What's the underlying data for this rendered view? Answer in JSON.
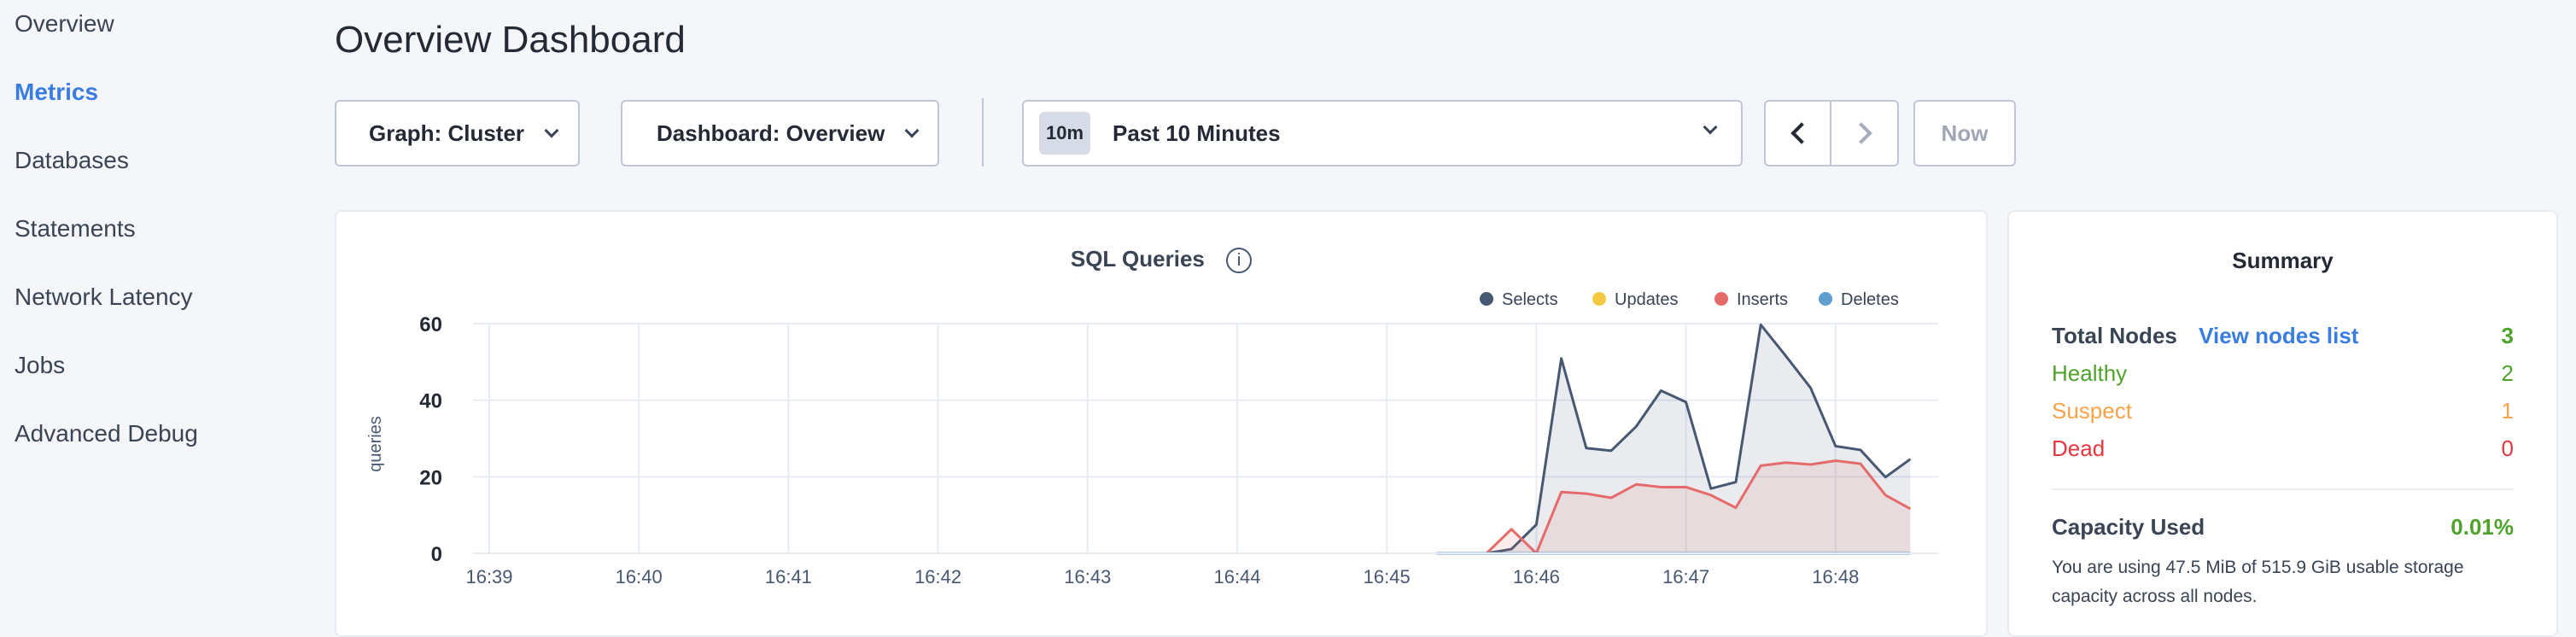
{
  "sidebar": {
    "items": [
      {
        "label": "Overview",
        "active": false
      },
      {
        "label": "Metrics",
        "active": true
      },
      {
        "label": "Databases",
        "active": false
      },
      {
        "label": "Statements",
        "active": false
      },
      {
        "label": "Network Latency",
        "active": false
      },
      {
        "label": "Jobs",
        "active": false
      },
      {
        "label": "Advanced Debug",
        "active": false
      }
    ]
  },
  "header": {
    "title": "Overview Dashboard"
  },
  "toolbar": {
    "graph_select": "Graph: Cluster",
    "dashboard_select": "Dashboard: Overview",
    "time_badge": "10m",
    "time_range": "Past 10 Minutes",
    "now_label": "Now"
  },
  "chart_data": {
    "type": "area",
    "title": "SQL Queries",
    "ylabel": "queries",
    "xlabel": "",
    "ylim": [
      0,
      60
    ],
    "yticks": [
      0,
      20,
      40,
      60
    ],
    "xticks": [
      "16:39",
      "16:40",
      "16:41",
      "16:42",
      "16:43",
      "16:44",
      "16:45",
      "16:46",
      "16:47",
      "16:48"
    ],
    "grid": true,
    "legend": "top-right",
    "x": [
      "16:45:20",
      "16:45:30",
      "16:45:40",
      "16:45:50",
      "16:46:00",
      "16:46:10",
      "16:46:20",
      "16:46:30",
      "16:46:40",
      "16:46:50",
      "16:47:00",
      "16:47:10",
      "16:47:20",
      "16:47:30",
      "16:47:40",
      "16:47:50",
      "16:48:00",
      "16:48:10",
      "16:48:20",
      "16:48:30"
    ],
    "series": [
      {
        "name": "Selects",
        "color": "#475872",
        "values": [
          0,
          0,
          0,
          1.1,
          7.5,
          50.9,
          27.5,
          26.8,
          33.1,
          42.5,
          39.5,
          16.9,
          18.6,
          59.7,
          51.6,
          43.2,
          28.0,
          27.0,
          19.9,
          24.6
        ]
      },
      {
        "name": "Updates",
        "color": "#f5c842",
        "values": [
          0,
          0,
          0,
          0,
          0,
          0,
          0,
          0,
          0,
          0,
          0,
          0,
          0,
          0,
          0,
          0,
          0,
          0,
          0,
          0
        ]
      },
      {
        "name": "Inserts",
        "color": "#e56b6b",
        "values": [
          0,
          0,
          0,
          6.3,
          0,
          16.0,
          15.6,
          14.5,
          18.0,
          17.3,
          17.3,
          15.2,
          11.9,
          22.9,
          23.7,
          23.2,
          24.2,
          23.4,
          15.2,
          11.6
        ]
      },
      {
        "name": "Deletes",
        "color": "#5f9fcf",
        "values": [
          0,
          0,
          0,
          0,
          0,
          0,
          0,
          0,
          0,
          0,
          0,
          0,
          0,
          0,
          0,
          0,
          0,
          0,
          0,
          0
        ]
      }
    ]
  },
  "summary": {
    "title": "Summary",
    "total_nodes_label": "Total Nodes",
    "view_nodes_link": "View nodes list",
    "total_nodes": "3",
    "healthy_label": "Healthy",
    "healthy": "2",
    "suspect_label": "Suspect",
    "suspect": "1",
    "dead_label": "Dead",
    "dead": "0",
    "capacity_label": "Capacity Used",
    "capacity_value": "0.01%",
    "capacity_text": "You are using 47.5 MiB of 515.9 GiB usable storage capacity across all nodes."
  },
  "colors": {
    "accent": "#3a7de1",
    "healthy": "#4fa22b",
    "suspect": "#f6a34a",
    "dead": "#e6363f"
  }
}
